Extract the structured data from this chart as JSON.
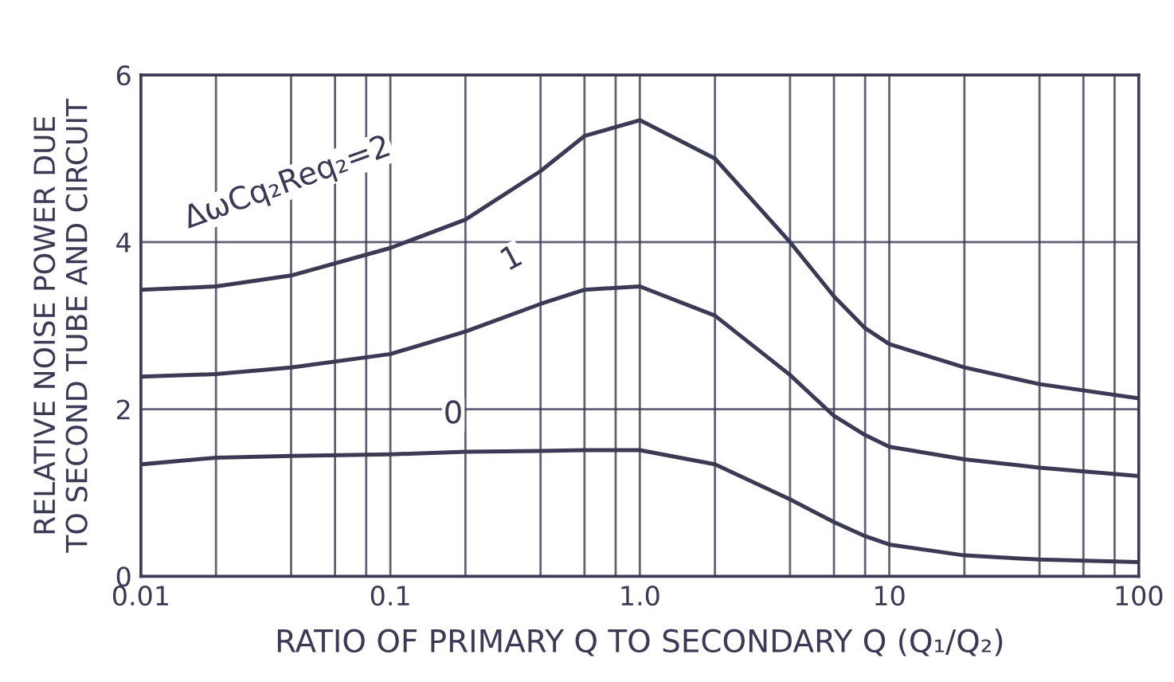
{
  "chart_data": {
    "type": "line",
    "xlabel": "RATIO OF PRIMARY Q TO SECONDARY Q (Q₁/Q₂)",
    "ylabel": "RELATIVE NOISE POWER DUE\nTO SECOND TUBE AND CIRCUIT",
    "log": "x",
    "grid": true,
    "line_style": "solid",
    "xlim": [
      0.01,
      100
    ],
    "ylim": [
      0,
      6
    ],
    "xticks": [
      0.01,
      {
        "value": 0.02,
        "label": null
      },
      {
        "value": 0.04,
        "label": null
      },
      {
        "value": 0.06,
        "label": null
      },
      {
        "value": 0.08,
        "label": null
      },
      0.1,
      {
        "value": 0.2,
        "label": null
      },
      {
        "value": 0.4,
        "label": null
      },
      {
        "value": 0.6,
        "label": null
      },
      {
        "value": 0.8,
        "label": null
      },
      {
        "value": 1,
        "label": "1.0"
      },
      {
        "value": 2,
        "label": null
      },
      {
        "value": 4,
        "label": null
      },
      {
        "value": 6,
        "label": null
      },
      {
        "value": 8,
        "label": null
      },
      10,
      {
        "value": 20,
        "label": null
      },
      {
        "value": 40,
        "label": null
      },
      {
        "value": 60,
        "label": null
      },
      {
        "value": 80,
        "label": null
      },
      100
    ],
    "yticks": [
      0,
      2,
      4,
      6
    ],
    "x": [
      0.01,
      0.02,
      0.04,
      0.1,
      0.2,
      0.4,
      0.6,
      1,
      2,
      4,
      6,
      8,
      10,
      20,
      40,
      100
    ],
    "series": [
      {
        "color": "#3a3a55",
        "values": [
          3.43,
          3.47,
          3.6,
          3.93,
          4.27,
          4.85,
          5.27,
          5.46,
          5.0,
          4.0,
          3.35,
          2.97,
          2.78,
          2.5,
          2.3,
          2.13
        ]
      },
      {
        "color": "#3a3a55",
        "values": [
          2.39,
          2.42,
          2.5,
          2.66,
          2.93,
          3.26,
          3.43,
          3.47,
          3.12,
          2.41,
          1.92,
          1.69,
          1.55,
          1.4,
          1.3,
          1.2
        ]
      },
      {
        "color": "#3a3a55",
        "values": [
          1.34,
          1.42,
          1.44,
          1.46,
          1.49,
          1.5,
          1.51,
          1.51,
          1.34,
          0.92,
          0.65,
          0.48,
          0.38,
          0.25,
          0.2,
          0.17
        ]
      }
    ],
    "annotations": [
      {
        "text": "ΔωCq₂Req₂=2",
        "x": 0.1,
        "y": 3.93
      },
      {
        "text": "1",
        "x": 0.4,
        "y": 3.26
      },
      {
        "text": "0",
        "x": 0.2,
        "y": 1.49
      }
    ]
  }
}
